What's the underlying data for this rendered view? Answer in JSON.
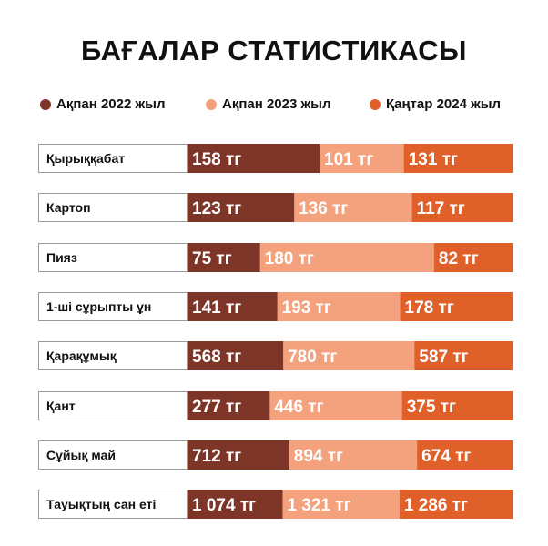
{
  "chart_data": {
    "type": "bar",
    "stacked": true,
    "orientation": "horizontal",
    "title": "БАҒАЛАР СТАТИСТИКАСЫ",
    "categories": [
      "Қырыққабат",
      "Картоп",
      "Пияз",
      "1-ші сұрыпты ұн",
      "Қарақұмық",
      "Қант",
      "Сұйық май",
      "Тауықтың сан еті"
    ],
    "series": [
      {
        "name": "Ақпан 2022 жыл",
        "color": "#7d3527",
        "values": [
          158,
          123,
          75,
          141,
          568,
          277,
          712,
          1074
        ],
        "labels": [
          "158 тг",
          "123 тг",
          "75 тг",
          "141 тг",
          "568 тг",
          "277 тг",
          "712 тг",
          "1 074 тг"
        ]
      },
      {
        "name": "Ақпан 2023 жыл",
        "color": "#f4a27d",
        "values": [
          101,
          136,
          180,
          193,
          780,
          446,
          894,
          1321
        ],
        "labels": [
          "101 тг",
          "136 тг",
          "180 тг",
          "193 тг",
          "780 тг",
          "446 тг",
          "894 тг",
          "1 321 тг"
        ]
      },
      {
        "name": "Қаңтар 2024 жыл",
        "color": "#e0602a",
        "values": [
          131,
          117,
          82,
          178,
          587,
          375,
          674,
          1286
        ],
        "labels": [
          "131 тг",
          "117 тг",
          "82 тг",
          "178 тг",
          "587 тг",
          "375 тг",
          "674 тг",
          "1 286 тг"
        ]
      }
    ],
    "legend_position": "top",
    "grid": false
  }
}
